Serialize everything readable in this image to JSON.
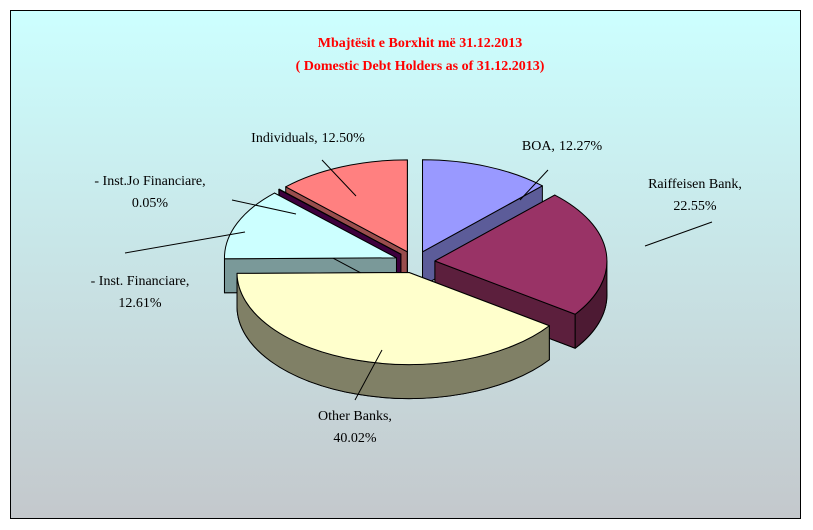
{
  "chart_data": {
    "type": "pie3d",
    "title": "Mbajtësit e Borxhit më 31.12.2013",
    "subtitle": "( Domestic Debt Holders as of  31.12.2013)",
    "categories": [
      "BOA,",
      "Raiffeisen Bank,",
      "Other Banks,",
      "- Inst. Financiare,",
      "- Inst.Jo Financiare,",
      "Individuals,"
    ],
    "values": [
      12.27,
      22.55,
      40.02,
      12.61,
      0.05,
      12.5
    ],
    "value_labels": [
      "12.27%",
      "22.55%",
      "40.02%",
      "12.61%",
      "0.05%",
      "12.50%"
    ],
    "colors": [
      "#9999ff",
      "#993366",
      "#ffffcc",
      "#ccffff",
      "#660066",
      "#ff8080"
    ]
  }
}
